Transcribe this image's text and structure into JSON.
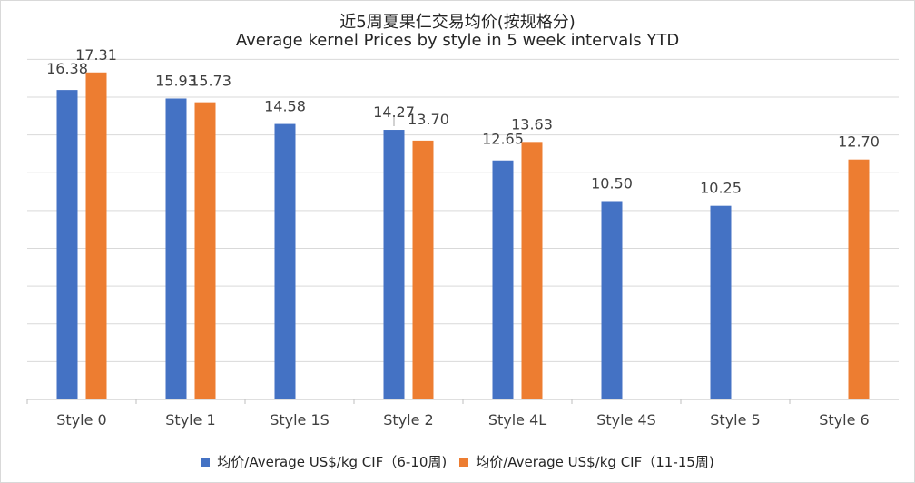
{
  "chart_data": {
    "type": "bar",
    "title": "近5周夏果仁交易均价(按规格分)",
    "subtitle": "Average kernel Prices by style in 5 week intervals YTD",
    "categories": [
      "Style 0",
      "Style 1",
      "Style 1S",
      "Style 2",
      "Style 4L",
      "Style 4S",
      "Style 5",
      "Style 6"
    ],
    "series": [
      {
        "name": "均价/Average US$/kg CIF（6-10周)",
        "color": "#4472c4",
        "values": [
          16.38,
          15.93,
          14.58,
          14.27,
          12.65,
          10.5,
          10.25,
          null
        ],
        "labels": [
          "16.38",
          "15.93",
          "14.58",
          "14.27",
          "12.65",
          "10.50",
          "10.25",
          ""
        ]
      },
      {
        "name": "均价/Average US$/kg CIF（11-15周)",
        "color": "#ed7d31",
        "values": [
          17.31,
          15.73,
          null,
          13.7,
          13.63,
          null,
          null,
          12.7
        ],
        "labels": [
          "17.31",
          "15.73",
          "",
          "13.70",
          "13.63",
          "",
          "",
          "12.70"
        ]
      }
    ],
    "ylim": [
      0,
      18.5
    ],
    "grid": true,
    "legend_position": "bottom"
  }
}
